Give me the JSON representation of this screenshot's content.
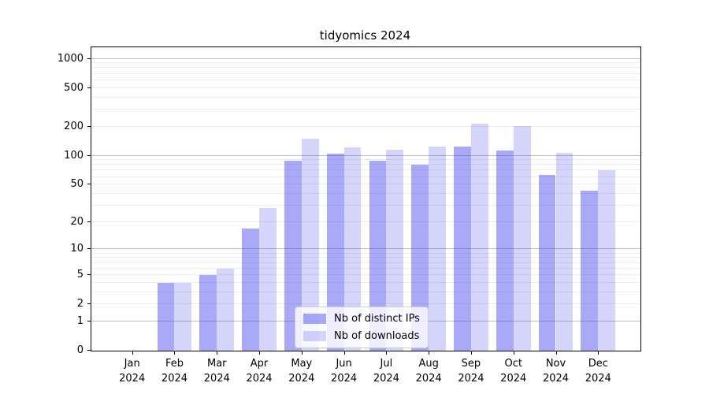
{
  "chart_data": {
    "type": "bar",
    "title": "tidyomics 2024",
    "categories": [
      "Jan 2024",
      "Feb 2024",
      "Mar 2024",
      "Apr 2024",
      "May 2024",
      "Jun 2024",
      "Jul 2024",
      "Aug 2024",
      "Sep 2024",
      "Oct 2024",
      "Nov 2024",
      "Dec 2024"
    ],
    "series": [
      {
        "name": "Nb of distinct IPs",
        "values": [
          0,
          4,
          5,
          17,
          89,
          105,
          89,
          81,
          124,
          114,
          63,
          43
        ],
        "color": "rgba(64,64,240,0.45)"
      },
      {
        "name": "Nb of downloads",
        "values": [
          0,
          4,
          6,
          28,
          150,
          121,
          116,
          125,
          215,
          201,
          106,
          70
        ],
        "color": "rgba(64,64,240,0.22)"
      }
    ],
    "y_ticks": [
      0,
      1,
      2,
      5,
      10,
      20,
      50,
      100,
      200,
      500,
      1000
    ],
    "y_scale": "log1p",
    "ylim": [
      0,
      1100
    ],
    "xlabel": "",
    "ylabel": "",
    "grid": "on",
    "legend_position": "lower center",
    "colors": {
      "grid_major": "#bdbdbd",
      "grid_minor": "#ececec",
      "axis": "#000000",
      "background": "#ffffff"
    }
  }
}
